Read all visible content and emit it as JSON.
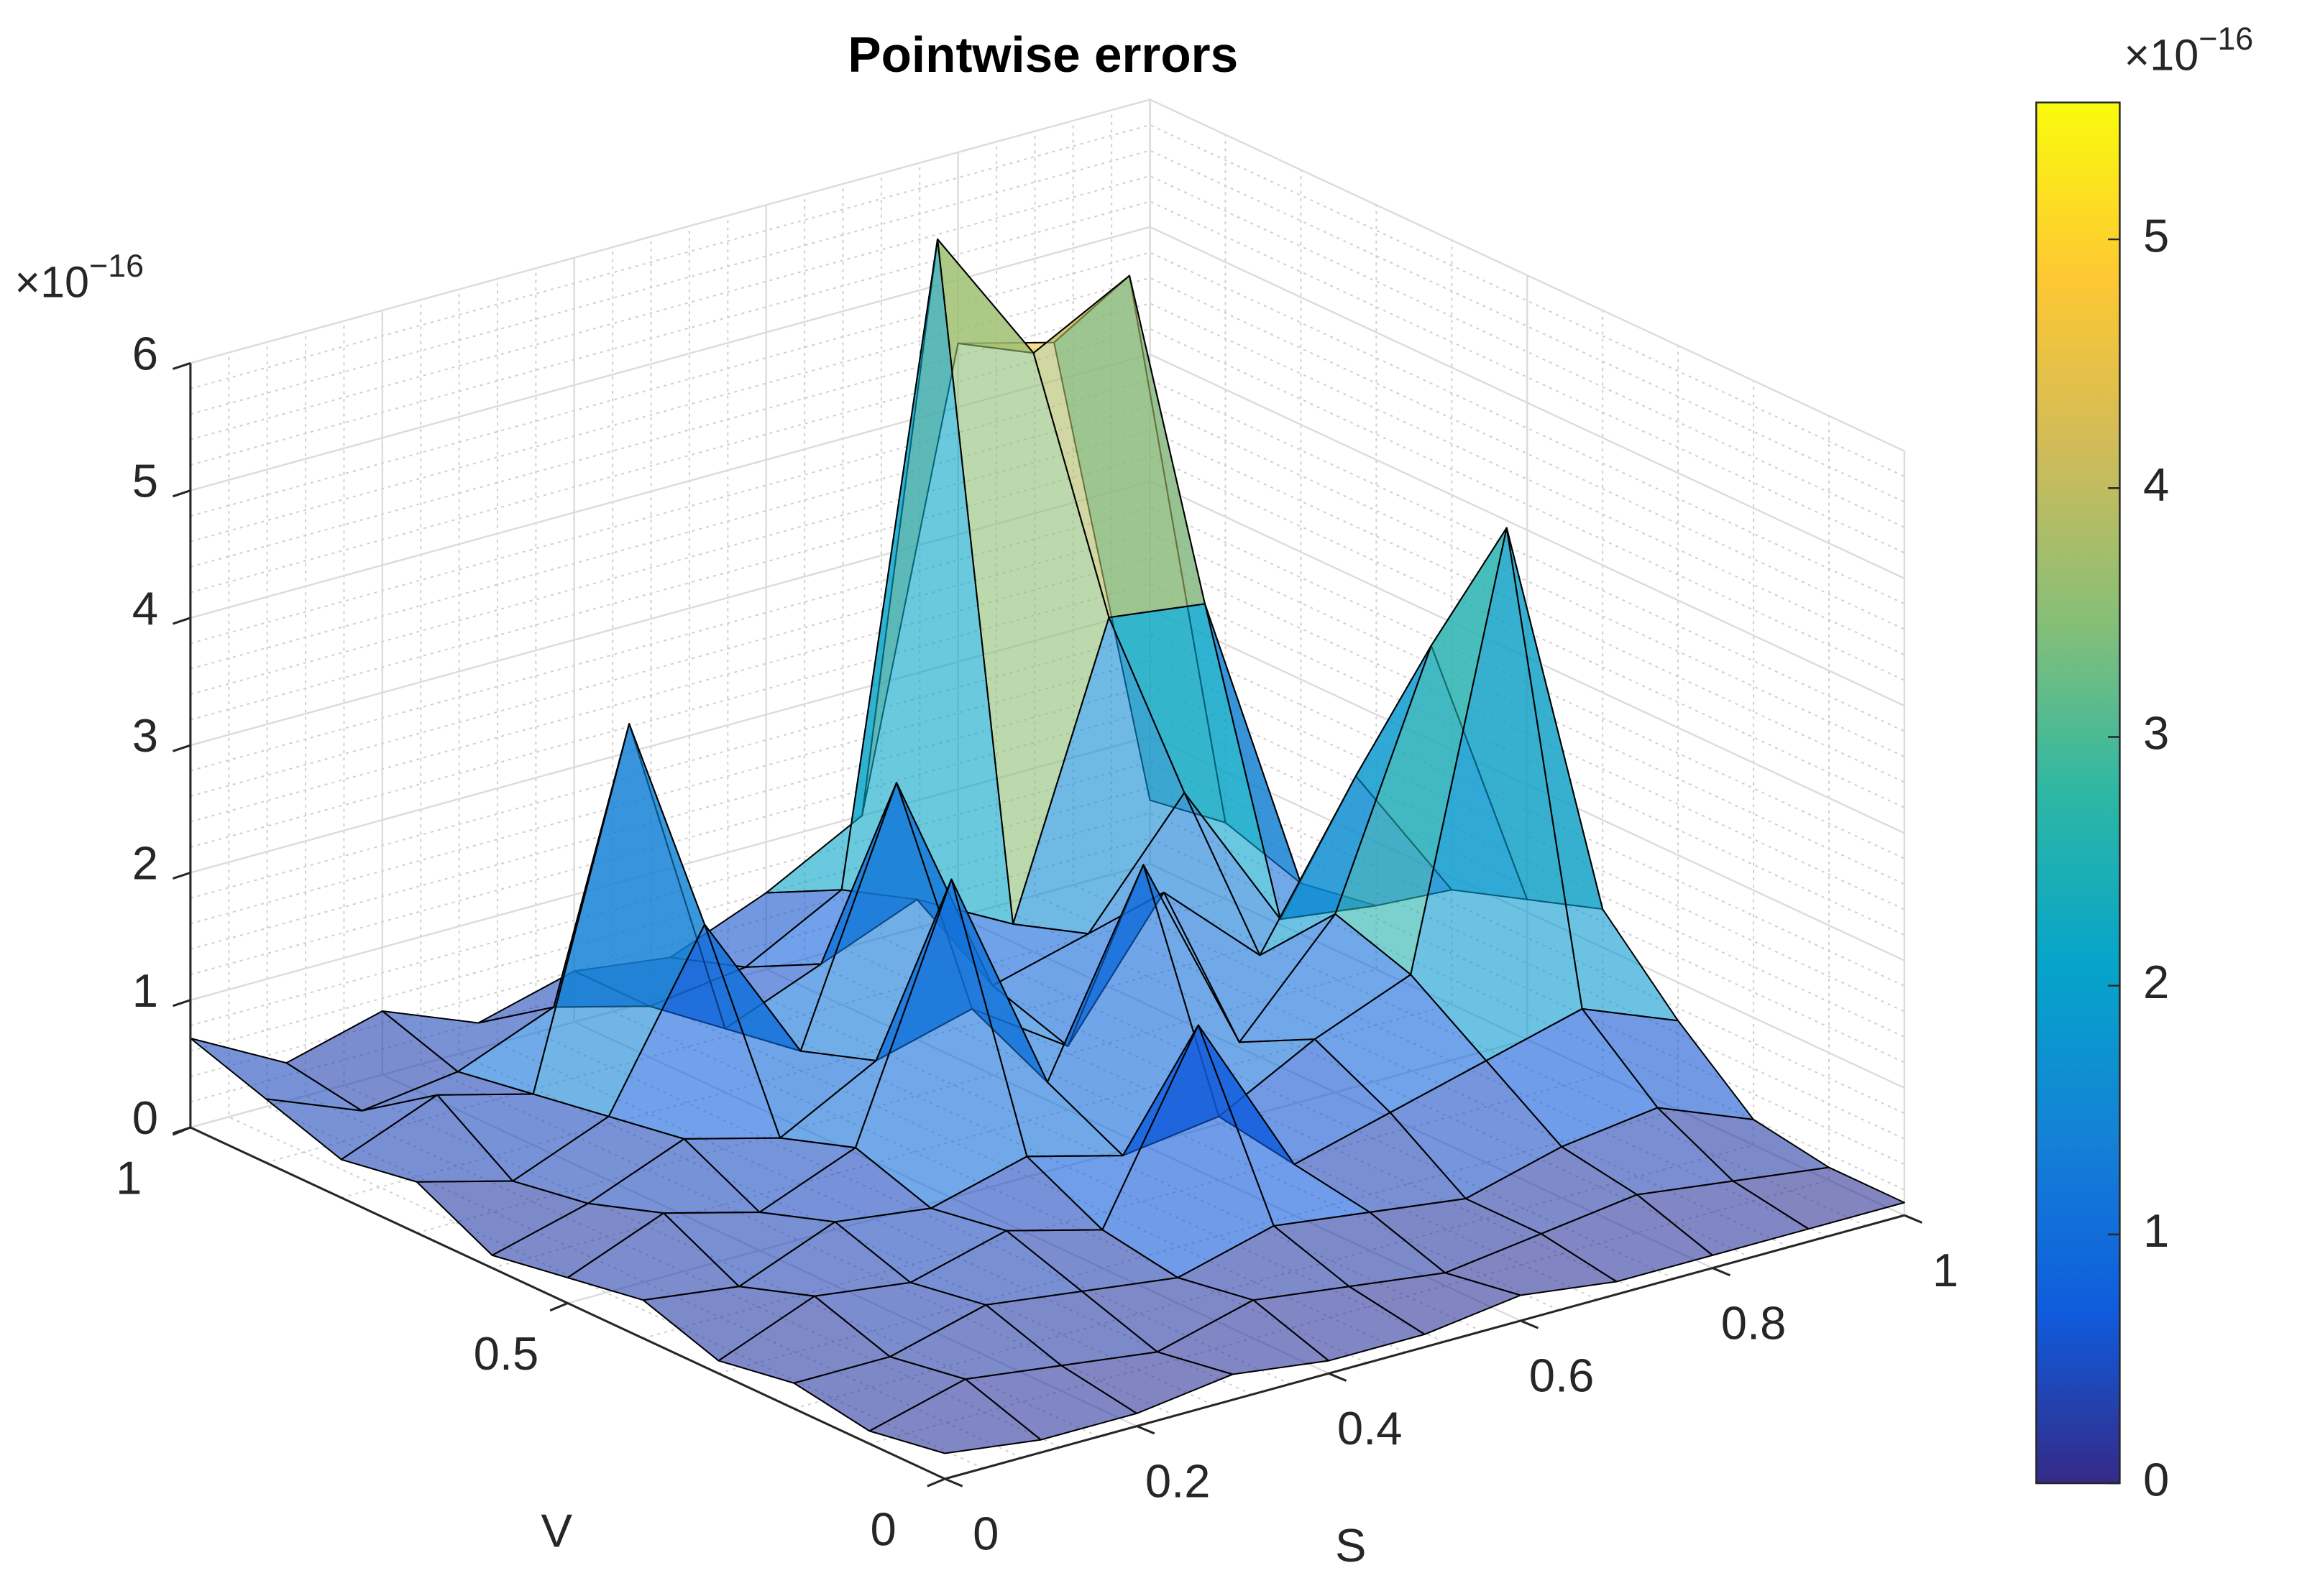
{
  "chart_data": {
    "type": "surface",
    "title": "Pointwise errors",
    "xlabel": "S",
    "ylabel": "V",
    "x": [
      0,
      0.1,
      0.2,
      0.3,
      0.4,
      0.5,
      0.6,
      0.7,
      0.8,
      0.9,
      1
    ],
    "y": [
      0,
      0.1,
      0.2,
      0.3,
      0.4,
      0.5,
      0.6,
      0.7,
      0.8,
      0.9,
      1
    ],
    "z": [
      [
        0.2,
        0.1,
        0.1,
        0.2,
        0.1,
        0.1,
        0.2,
        0.1,
        0.1,
        0.1,
        0.1
      ],
      [
        0.1,
        0.3,
        0.2,
        0.1,
        0.3,
        0.2,
        0.1,
        0.2,
        0.3,
        0.2,
        0.1
      ],
      [
        0.2,
        0.2,
        0.4,
        0.3,
        0.2,
        0.4,
        0.3,
        0.2,
        0.4,
        0.5,
        0.2
      ],
      [
        0.1,
        0.4,
        0.3,
        0.5,
        0.3,
        1.7,
        0.4,
        0.6,
        0.8,
        1.0,
        0.7
      ],
      [
        0.3,
        0.2,
        0.5,
        0.4,
        0.6,
        0.4,
        0.5,
        0.9,
        1.2,
        4.5,
        1.3
      ],
      [
        0.2,
        0.5,
        0.3,
        0.6,
        2.5,
        0.7,
        2.2,
        0.6,
        1.4,
        3.3,
        1.1
      ],
      [
        0.1,
        0.3,
        0.6,
        0.4,
        0.8,
        1.0,
        0.5,
        1.5,
        0.8,
        2.0,
        0.9
      ],
      [
        0.4,
        0.2,
        0.5,
        1.8,
        0.6,
        2.5,
        0.7,
        0.9,
        1.8,
        0.6,
        0.5
      ],
      [
        0.3,
        0.6,
        0.4,
        3.1,
        0.5,
        0.8,
        1.1,
        0.7,
        2.9,
        2.8,
        0.4
      ],
      [
        0.5,
        0.2,
        0.3,
        0.6,
        0.4,
        0.5,
        0.9,
        5.8,
        4.7,
        5.1,
        0.6
      ],
      [
        0.7,
        0.3,
        0.5,
        0.2,
        0.4,
        0.3,
        0.6,
        1.0,
        4.5,
        4.3,
        0.5
      ]
    ],
    "xlim": [
      0,
      1
    ],
    "ylim": [
      0,
      1
    ],
    "zlim": [
      0,
      6
    ],
    "xticks": [
      0,
      0.2,
      0.4,
      0.6,
      0.8,
      1
    ],
    "yticks": [
      0,
      0.5,
      1
    ],
    "zticks": [
      0,
      1,
      2,
      3,
      4,
      5,
      6
    ],
    "z_exponent": {
      "base": "×10",
      "power": "−16"
    },
    "grid": true,
    "colormap": "parula",
    "edge_color": "#000000",
    "face_alpha": 0.6,
    "colorbar": {
      "clim": [
        0,
        5.55
      ],
      "ticks": [
        0,
        1,
        2,
        3,
        4,
        5
      ],
      "exponent": {
        "base": "×10",
        "power": "−16"
      }
    }
  }
}
